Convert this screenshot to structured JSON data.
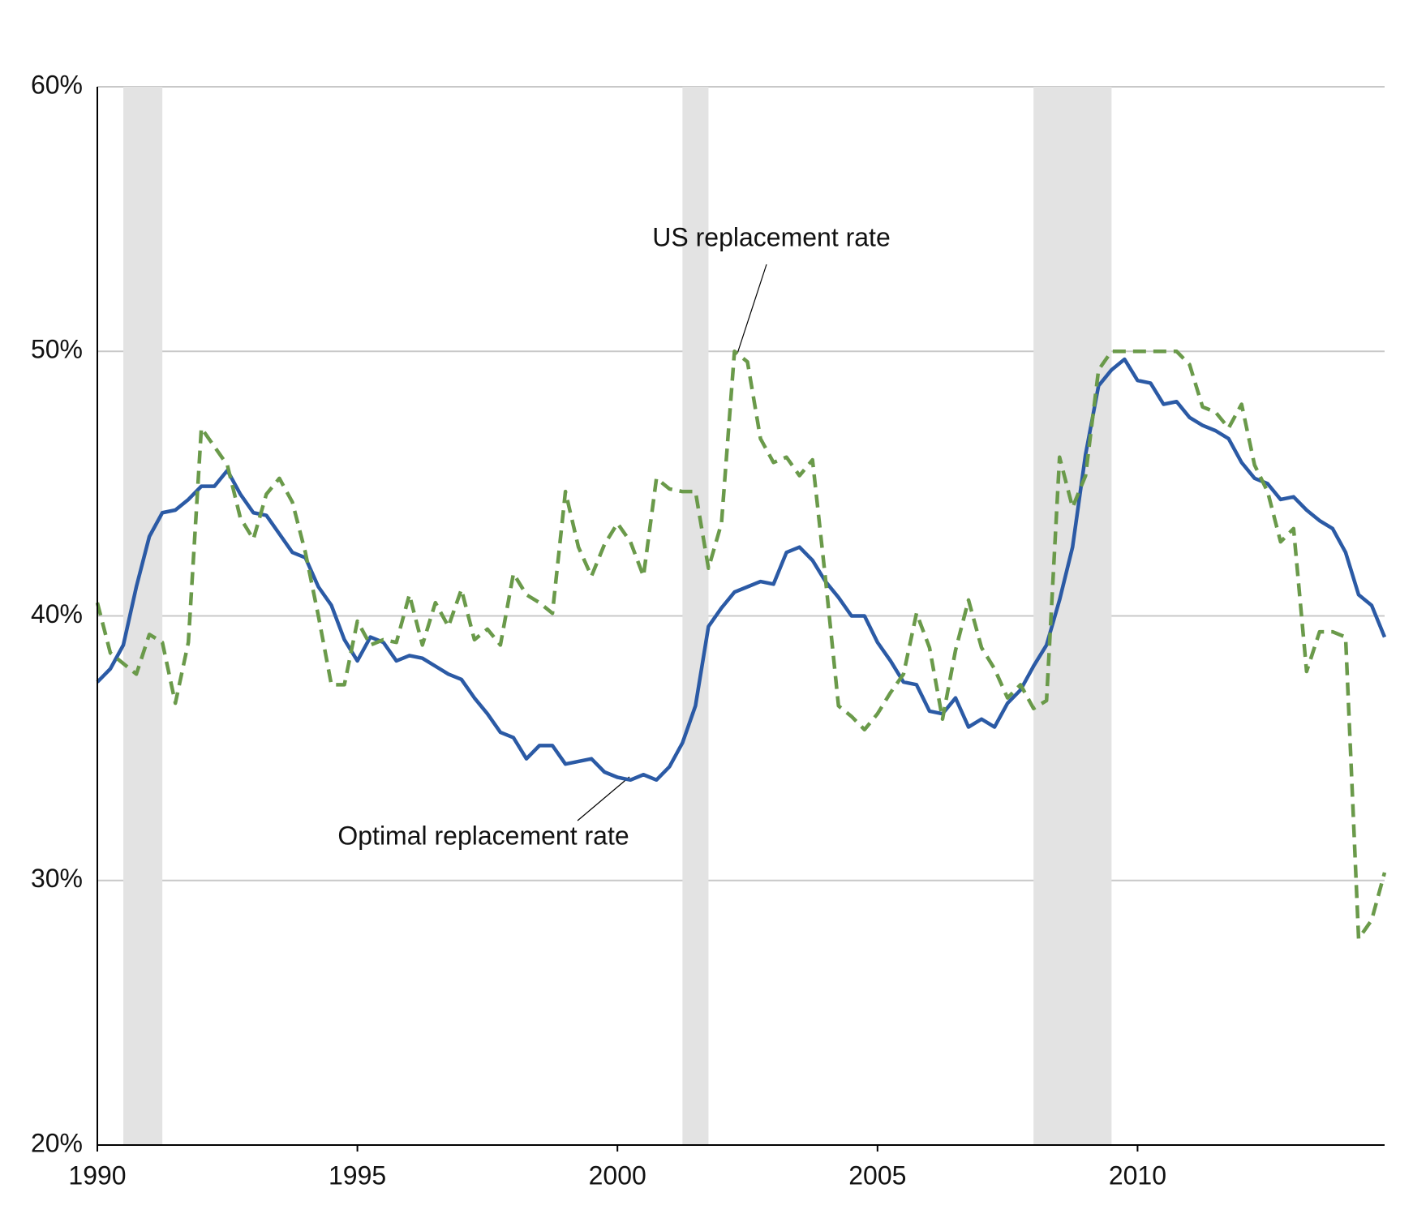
{
  "chart_data": {
    "type": "line",
    "x": [
      1990,
      1990.25,
      1990.5,
      1990.75,
      1991,
      1991.25,
      1991.5,
      1991.75,
      1992,
      1992.25,
      1992.5,
      1992.75,
      1993,
      1993.25,
      1993.5,
      1993.75,
      1994,
      1994.25,
      1994.5,
      1994.75,
      1995,
      1995.25,
      1995.5,
      1995.75,
      1996,
      1996.25,
      1996.5,
      1996.75,
      1997,
      1997.25,
      1997.5,
      1997.75,
      1998,
      1998.25,
      1998.5,
      1998.75,
      1999,
      1999.25,
      1999.5,
      1999.75,
      2000,
      2000.25,
      2000.5,
      2000.75,
      2001,
      2001.25,
      2001.5,
      2001.75,
      2002,
      2002.25,
      2002.5,
      2002.75,
      2003,
      2003.25,
      2003.5,
      2003.75,
      2004,
      2004.25,
      2004.5,
      2004.75,
      2005,
      2005.25,
      2005.5,
      2005.75,
      2006,
      2006.25,
      2006.5,
      2006.75,
      2007,
      2007.25,
      2007.5,
      2007.75,
      2008,
      2008.25,
      2008.5,
      2008.75,
      2009,
      2009.25,
      2009.5,
      2009.75,
      2010,
      2010.25,
      2010.5,
      2010.75,
      2011,
      2011.25,
      2011.5,
      2011.75,
      2012,
      2012.25,
      2012.5,
      2012.75,
      2013,
      2013.25,
      2013.5,
      2013.75,
      2014,
      2014.25,
      2014.5,
      2014.75
    ],
    "series": [
      {
        "name": "Optimal replacement rate",
        "color": "#2b5aa5",
        "dash": false,
        "values": [
          37.5,
          38.0,
          38.9,
          41.1,
          43.0,
          43.9,
          44.0,
          44.4,
          44.9,
          44.9,
          45.5,
          44.6,
          43.9,
          43.8,
          43.1,
          42.4,
          42.2,
          41.1,
          40.4,
          39.1,
          38.3,
          39.2,
          39.0,
          38.3,
          38.5,
          38.4,
          38.1,
          37.8,
          37.6,
          36.9,
          36.3,
          35.6,
          35.4,
          34.6,
          35.1,
          35.1,
          34.4,
          34.5,
          34.6,
          34.1,
          33.9,
          33.8,
          34.0,
          33.8,
          34.3,
          35.2,
          36.6,
          39.6,
          40.3,
          40.9,
          41.1,
          41.3,
          41.2,
          42.4,
          42.6,
          42.1,
          41.3,
          40.7,
          40.0,
          40.0,
          39.0,
          38.3,
          37.5,
          37.4,
          36.4,
          36.3,
          36.9,
          35.8,
          36.1,
          35.8,
          36.7,
          37.2,
          38.1,
          38.9,
          40.6,
          42.6,
          46.1,
          48.7,
          49.3,
          49.7,
          48.9,
          48.8,
          48.0,
          48.1,
          47.5,
          47.2,
          47.0,
          46.7,
          45.8,
          45.2,
          45.0,
          44.4,
          44.5,
          44.0,
          43.6,
          43.3,
          42.4,
          40.8,
          40.4,
          39.2
        ]
      },
      {
        "name": "US replacement rate",
        "color": "#6a9a4a",
        "dash": true,
        "values": [
          40.5,
          38.6,
          38.2,
          37.8,
          39.3,
          39.0,
          36.7,
          39.0,
          47.1,
          46.4,
          45.7,
          43.7,
          42.9,
          44.6,
          45.2,
          44.3,
          42.4,
          40.0,
          37.4,
          37.4,
          39.8,
          38.9,
          39.1,
          39.0,
          40.8,
          38.9,
          40.5,
          39.6,
          41.0,
          39.1,
          39.5,
          38.9,
          41.6,
          40.8,
          40.5,
          40.1,
          44.7,
          42.6,
          41.5,
          42.7,
          43.5,
          42.8,
          41.5,
          45.2,
          44.8,
          44.7,
          44.7,
          41.8,
          43.5,
          50.0,
          49.6,
          46.7,
          45.8,
          46.0,
          45.3,
          45.9,
          41.4,
          36.6,
          36.2,
          35.7,
          36.3,
          37.1,
          37.8,
          40.1,
          38.8,
          36.1,
          38.7,
          40.6,
          38.8,
          38.0,
          36.9,
          37.4,
          36.5,
          36.8,
          46.0,
          44.1,
          45.3,
          49.3,
          50.0,
          50.0,
          50.0,
          50.0,
          50.0,
          50.0,
          49.5,
          47.9,
          47.7,
          47.1,
          48.0,
          45.7,
          44.7,
          42.8,
          43.3,
          37.9,
          39.4,
          39.4,
          39.2,
          27.8,
          28.5,
          30.3
        ]
      }
    ],
    "recessions": [
      [
        1990.5,
        1991.25
      ],
      [
        2001.25,
        2001.75
      ],
      [
        2008,
        2009.5
      ]
    ],
    "recession_color": "#e3e3e3",
    "xlim": [
      1990,
      2014.75
    ],
    "xticks": [
      1990,
      1995,
      2000,
      2005,
      2010
    ],
    "ylim": [
      20,
      60
    ],
    "yticks": [
      {
        "value": 20,
        "label": "20%"
      },
      {
        "value": 30,
        "label": "30%"
      },
      {
        "value": 40,
        "label": "40%"
      },
      {
        "value": 50,
        "label": "50%"
      },
      {
        "value": 60,
        "label": "60%"
      }
    ],
    "grid": true
  }
}
